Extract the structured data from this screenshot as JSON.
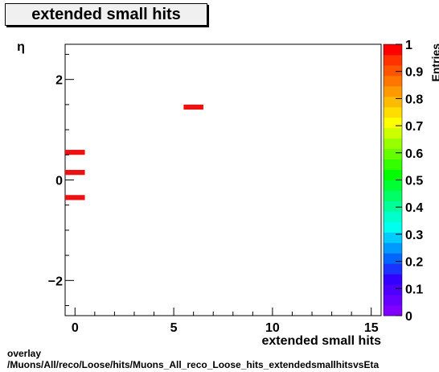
{
  "chart_data": {
    "type": "heatmap",
    "title": "extended small hits",
    "xlabel": "extended small hits",
    "ylabel": "η",
    "zlabel": "Entries",
    "xlim": [
      -0.5,
      15.5
    ],
    "ylim": [
      -2.7,
      2.7
    ],
    "zlim": [
      0,
      1
    ],
    "x_ticks": [
      0,
      5,
      10,
      15
    ],
    "y_ticks": [
      -2,
      0,
      2
    ],
    "z_ticks": [
      0,
      0.1,
      0.2,
      0.3,
      0.4,
      0.5,
      0.6,
      0.7,
      0.8,
      0.9,
      1
    ],
    "x_bin_width": 1,
    "y_bin_width": 0.1,
    "cells": [
      {
        "x": 0,
        "y": 0.55,
        "value": 1
      },
      {
        "x": 0,
        "y": 0.15,
        "value": 1
      },
      {
        "x": 0,
        "y": -0.35,
        "value": 1
      },
      {
        "x": 6,
        "y": 1.45,
        "value": 1
      }
    ],
    "palette": [
      "#7f00ff",
      "#6600ff",
      "#4d00ff",
      "#3300ff",
      "#1a33ff",
      "#0066ff",
      "#0099ff",
      "#00ccff",
      "#00ffee",
      "#00ffcc",
      "#00ff99",
      "#00ff66",
      "#00ff33",
      "#00ff00",
      "#33ff00",
      "#66ff00",
      "#99ff00",
      "#ccff00",
      "#ffff00",
      "#ffdd00",
      "#ffbb00",
      "#ff9900",
      "#ff7700",
      "#ff5500",
      "#ff3300",
      "#ff0000"
    ],
    "cell_color": "#ee1111"
  },
  "footer": {
    "line1": "overlay",
    "line2": "/Muons/All/reco/Loose/hits/Muons_All_reco_Loose_hits_extendedsmallhitsvsEta"
  }
}
